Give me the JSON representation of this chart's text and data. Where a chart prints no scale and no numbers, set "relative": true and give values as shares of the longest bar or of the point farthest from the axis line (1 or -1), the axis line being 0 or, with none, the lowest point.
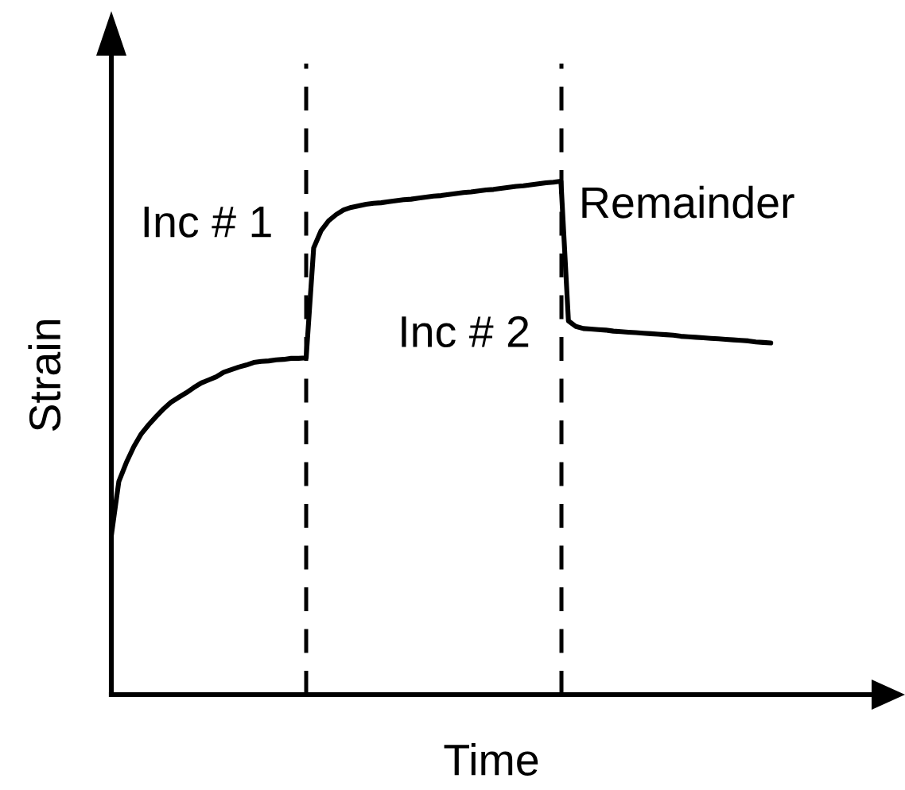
{
  "chart_data": {
    "type": "line",
    "relative": true,
    "xlabel": "Time",
    "ylabel": "Strain",
    "color": "#000000",
    "categories": [
      null,
      null,
      null,
      null,
      null,
      null,
      null,
      null,
      null,
      null,
      null,
      null,
      null,
      null,
      null,
      null,
      null,
      null,
      null,
      null,
      null,
      null,
      null,
      null,
      null,
      null,
      null,
      null,
      null,
      null,
      null,
      null,
      null,
      null,
      null,
      null,
      null,
      null,
      null,
      null,
      null,
      null,
      null,
      null,
      null,
      null,
      null,
      null,
      null,
      null,
      null,
      null,
      null,
      null,
      null,
      null,
      null,
      null,
      null,
      null,
      null,
      null,
      null,
      null,
      null,
      null,
      null,
      null,
      null,
      null,
      null,
      null,
      null,
      null,
      null,
      null,
      null,
      null,
      null,
      null,
      null,
      null,
      null,
      null,
      null,
      null,
      null,
      null,
      null
    ],
    "values": [
      0.31,
      0.415,
      0.452,
      0.483,
      0.508,
      0.526,
      0.542,
      0.557,
      0.57,
      0.579,
      0.588,
      0.598,
      0.607,
      0.613,
      0.619,
      0.628,
      0.633,
      0.638,
      0.642,
      0.647,
      0.649,
      0.65,
      0.652,
      0.653,
      0.655,
      0.655,
      0.656,
      0.87,
      0.904,
      0.923,
      0.935,
      0.944,
      0.949,
      0.952,
      0.955,
      0.957,
      0.958,
      0.96,
      0.962,
      0.964,
      0.965,
      0.967,
      0.969,
      0.971,
      0.972,
      0.974,
      0.976,
      0.978,
      0.979,
      0.981,
      0.983,
      0.984,
      0.986,
      0.988,
      0.99,
      0.991,
      0.993,
      0.995,
      0.997,
      0.998,
      1.0,
      0.728,
      0.717,
      0.713,
      0.712,
      0.711,
      0.71,
      0.708,
      0.707,
      0.706,
      0.705,
      0.704,
      0.703,
      0.702,
      0.701,
      0.7,
      0.698,
      0.697,
      0.696,
      0.695,
      0.694,
      0.693,
      0.692,
      0.691,
      0.69,
      0.689,
      0.687,
      0.686,
      0.685
    ],
    "annotations": [
      "Inc # 1",
      "Inc # 2",
      "Remainder"
    ]
  }
}
